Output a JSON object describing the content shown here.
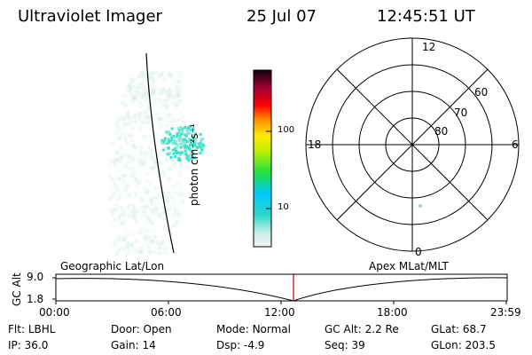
{
  "header": {
    "instrument": "Ultraviolet Imager",
    "date": "25 Jul 07",
    "time": "12:45:51 UT"
  },
  "colorbar": {
    "label": "photon cm⁻²s⁻¹",
    "ticks": [
      "100",
      "10"
    ]
  },
  "polar_plot": {
    "mlt_labels": {
      "top": "12",
      "left": "18",
      "right": "6",
      "bottom": "0"
    },
    "lat_labels": [
      "60",
      "70",
      "80"
    ]
  },
  "timeline": {
    "left_title": "Geographic Lat/Lon",
    "right_title": "Apex MLat/MLT",
    "axis_label": "GC Alt",
    "y_ticks": [
      "9.0",
      "1.8"
    ],
    "x_ticks": [
      "00:00",
      "06:00",
      "12:00",
      "18:00",
      "23:59"
    ],
    "marker_time": "12:45:51"
  },
  "info": {
    "row1": [
      {
        "key": "Flt:",
        "val": "LBHL"
      },
      {
        "key": "Door:",
        "val": "Open"
      },
      {
        "key": "Mode:",
        "val": "Normal"
      },
      {
        "key": "GC Alt:",
        "val": "2.2 Re"
      },
      {
        "key": "GLat:",
        "val": "68.7"
      }
    ],
    "row2": [
      {
        "key": "IP:",
        "val": "36.0"
      },
      {
        "key": "Gain:",
        "val": "14"
      },
      {
        "key": "Dsp:",
        "val": "-4.9"
      },
      {
        "key": "Seq:",
        "val": "39"
      },
      {
        "key": "GLon:",
        "val": "203.5"
      }
    ]
  },
  "colors": {
    "marker": "#b00000",
    "grid": "#000000",
    "aurora_bright": "#3fe0c8",
    "aurora_faint": "#cfe9e4"
  }
}
